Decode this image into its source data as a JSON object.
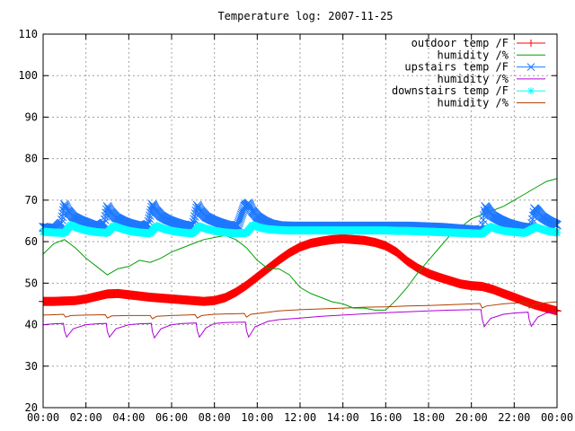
{
  "chart_data": {
    "type": "line",
    "title": "Temperature log: 2007-11-25",
    "xlabel": "",
    "ylabel": "",
    "xlim": [
      0,
      24
    ],
    "ylim": [
      20,
      110
    ],
    "y_ticks": [
      20,
      30,
      40,
      50,
      60,
      70,
      80,
      90,
      100,
      110
    ],
    "x_ticks": [
      {
        "h": 0,
        "label": "00:00"
      },
      {
        "h": 2,
        "label": "02:00"
      },
      {
        "h": 4,
        "label": "04:00"
      },
      {
        "h": 6,
        "label": "06:00"
      },
      {
        "h": 8,
        "label": "08:00"
      },
      {
        "h": 10,
        "label": "10:00"
      },
      {
        "h": 12,
        "label": "12:00"
      },
      {
        "h": 14,
        "label": "14:00"
      },
      {
        "h": 16,
        "label": "16:00"
      },
      {
        "h": 18,
        "label": "18:00"
      },
      {
        "h": 20,
        "label": "20:00"
      },
      {
        "h": 22,
        "label": "22:00"
      },
      {
        "h": 24,
        "label": "00:00"
      }
    ],
    "grid": true,
    "legend_position": "top-right",
    "series": [
      {
        "name": "outdoor temp /F",
        "color": "#ff0000",
        "marker": "plus",
        "line_width": 1,
        "marker_size": 5,
        "x": [
          0,
          0.5,
          1,
          1.5,
          2,
          2.5,
          3,
          3.5,
          4,
          4.5,
          5,
          5.5,
          6,
          6.5,
          7,
          7.5,
          8,
          8.5,
          9,
          9.5,
          10,
          10.5,
          11,
          11.5,
          12,
          12.5,
          13,
          13.5,
          14,
          14.5,
          15,
          15.5,
          16,
          16.5,
          17,
          17.5,
          18,
          18.5,
          19,
          19.5,
          20,
          20.5,
          21,
          21.5,
          22,
          22.5,
          23,
          23.5,
          24
        ],
        "y": [
          45.6,
          45.6,
          45.7,
          45.8,
          46.2,
          46.8,
          47.4,
          47.5,
          47.2,
          46.9,
          46.6,
          46.4,
          46.2,
          46.0,
          45.8,
          45.6,
          45.8,
          46.5,
          47.8,
          49.5,
          51.5,
          53.5,
          55.5,
          57.3,
          58.7,
          59.6,
          60.1,
          60.5,
          60.7,
          60.5,
          60.3,
          59.8,
          59.0,
          57.5,
          55.3,
          53.6,
          52.3,
          51.4,
          50.6,
          49.8,
          49.4,
          49.2,
          48.5,
          47.5,
          46.6,
          45.6,
          44.7,
          44.0,
          43.3
        ]
      },
      {
        "name": "humidity /%",
        "color": "#00a000",
        "marker": "none",
        "line_width": 1,
        "x": [
          0,
          0.5,
          1,
          1.5,
          2,
          2.5,
          3,
          3.5,
          4,
          4.5,
          5,
          5.5,
          6,
          6.5,
          7,
          7.5,
          8,
          8.5,
          9,
          9.5,
          10,
          10.5,
          11,
          11.5,
          12,
          12.5,
          13,
          13.5,
          14,
          14.5,
          15,
          15.5,
          16,
          16.5,
          17,
          17.5,
          18,
          18.5,
          19,
          19.5,
          20,
          20.5,
          21,
          21.5,
          22,
          22.5,
          23,
          23.5,
          24
        ],
        "y": [
          57.0,
          59.5,
          60.5,
          58.5,
          56.0,
          54.0,
          52.0,
          53.5,
          54.0,
          55.5,
          55.0,
          56.0,
          57.5,
          58.5,
          59.5,
          60.5,
          61.0,
          61.5,
          60.5,
          58.5,
          55.5,
          53.5,
          53.5,
          52.0,
          49.0,
          47.5,
          46.5,
          45.5,
          45.0,
          44.0,
          44.0,
          43.5,
          43.5,
          46.0,
          49.0,
          52.5,
          55.5,
          58.5,
          61.5,
          63.5,
          65.5,
          66.5,
          67.5,
          68.5,
          70.0,
          71.5,
          73.0,
          74.5,
          75.2
        ]
      },
      {
        "name": "upstairs temp /F",
        "color": "#1e78ff",
        "marker": "x",
        "line_width": 1,
        "marker_size": 4.5,
        "x": [
          0,
          0.3,
          0.6,
          0.85,
          1.0,
          1.15,
          1.4,
          1.7,
          2.0,
          2.3,
          2.6,
          2.85,
          3.0,
          3.15,
          3.4,
          3.7,
          4.0,
          4.3,
          4.6,
          4.9,
          5.1,
          5.25,
          5.5,
          5.8,
          6.1,
          6.4,
          6.7,
          7.0,
          7.2,
          7.35,
          7.6,
          7.9,
          8.2,
          8.5,
          8.8,
          9.1,
          9.4,
          9.6,
          9.75,
          10.0,
          10.3,
          10.6,
          11,
          11.5,
          12,
          12.5,
          13,
          13.5,
          14,
          14.5,
          15,
          15.5,
          16,
          16.5,
          17,
          17.5,
          18,
          18.5,
          19,
          19.5,
          20,
          20.3,
          20.5,
          20.65,
          20.8,
          21.0,
          21.3,
          21.6,
          21.9,
          22.2,
          22.5,
          22.8,
          22.95,
          23.1,
          23.3,
          23.6,
          24
        ],
        "y": [
          63.5,
          63.3,
          63.2,
          64.5,
          69.0,
          67.5,
          66.0,
          65.2,
          64.6,
          64.0,
          63.6,
          64.5,
          68.5,
          67.2,
          65.8,
          65.0,
          64.4,
          64.0,
          63.6,
          64.2,
          69.0,
          67.6,
          66.2,
          65.3,
          64.7,
          64.2,
          63.8,
          64.0,
          68.8,
          67.4,
          66.0,
          65.2,
          64.6,
          64.1,
          63.7,
          64.0,
          68.5,
          69.3,
          67.5,
          66.0,
          65.0,
          64.3,
          63.9,
          63.8,
          63.8,
          63.8,
          63.8,
          63.8,
          63.8,
          63.8,
          63.8,
          63.8,
          63.8,
          63.8,
          63.8,
          63.7,
          63.6,
          63.5,
          63.3,
          63.1,
          62.9,
          62.7,
          63.0,
          68.5,
          67.4,
          66.2,
          65.3,
          64.6,
          64.1,
          63.7,
          63.4,
          63.5,
          68.0,
          67.2,
          66.0,
          65.0,
          64.0
        ]
      },
      {
        "name": "humidity /%",
        "color": "#b000d8",
        "marker": "none",
        "line_width": 1,
        "x": [
          0,
          0.5,
          0.95,
          1.0,
          1.1,
          1.4,
          2.0,
          2.5,
          2.95,
          3.0,
          3.1,
          3.4,
          4.0,
          4.5,
          5.05,
          5.1,
          5.2,
          5.5,
          6.0,
          6.5,
          7.15,
          7.2,
          7.3,
          7.6,
          8.0,
          8.5,
          9.45,
          9.5,
          9.6,
          9.9,
          10.5,
          11,
          12,
          13,
          14,
          15,
          16,
          17,
          18,
          19,
          20,
          20.45,
          20.5,
          20.6,
          20.9,
          21.5,
          22,
          22.65,
          22.7,
          22.8,
          23.1,
          23.5,
          24
        ],
        "y": [
          40.0,
          40.2,
          40.3,
          38.5,
          37.0,
          39.0,
          40.0,
          40.2,
          40.3,
          38.3,
          37.0,
          39.0,
          40.0,
          40.2,
          40.3,
          38.3,
          36.8,
          39.0,
          40.0,
          40.3,
          40.4,
          38.5,
          37.0,
          39.2,
          40.3,
          40.5,
          40.6,
          38.5,
          37.0,
          39.5,
          40.8,
          41.2,
          41.6,
          42.0,
          42.3,
          42.6,
          42.9,
          43.1,
          43.3,
          43.5,
          43.6,
          43.6,
          41.5,
          39.5,
          41.5,
          42.5,
          42.8,
          43.0,
          41.2,
          39.6,
          41.8,
          42.8,
          43.2
        ]
      },
      {
        "name": "downstairs temp /F",
        "color": "#00ffff",
        "marker": "star",
        "line_width": 1,
        "marker_size": 4.5,
        "x": [
          0,
          0.5,
          1.0,
          1.3,
          1.6,
          2.0,
          2.5,
          3.0,
          3.3,
          3.6,
          4.0,
          4.5,
          5.0,
          5.3,
          5.6,
          6.0,
          6.5,
          7.0,
          7.3,
          7.6,
          8.0,
          8.5,
          9.0,
          9.5,
          9.8,
          10.1,
          10.5,
          11,
          11.5,
          12,
          12.5,
          13,
          13.5,
          14,
          14.5,
          15,
          15.5,
          16,
          16.5,
          17,
          17.5,
          18,
          18.5,
          19,
          19.5,
          20,
          20.5,
          20.9,
          21.2,
          21.5,
          22,
          22.5,
          23.0,
          23.3,
          23.6,
          24
        ],
        "y": [
          62.4,
          62.2,
          62.1,
          64.0,
          63.3,
          62.7,
          62.3,
          62.1,
          63.8,
          63.2,
          62.6,
          62.2,
          62.0,
          63.8,
          63.1,
          62.6,
          62.2,
          62.0,
          63.7,
          63.1,
          62.6,
          62.2,
          62.0,
          62.1,
          64.0,
          63.4,
          63.0,
          62.8,
          62.7,
          62.7,
          62.7,
          62.7,
          62.7,
          62.7,
          62.7,
          62.7,
          62.7,
          62.7,
          62.6,
          62.6,
          62.5,
          62.4,
          62.3,
          62.2,
          62.1,
          62.0,
          61.9,
          63.6,
          63.0,
          62.6,
          62.3,
          62.1,
          63.5,
          63.0,
          62.5,
          62.2
        ]
      },
      {
        "name": "humidity /%",
        "color": "#b04000",
        "marker": "none",
        "line_width": 1,
        "x": [
          0,
          0.5,
          0.95,
          1.05,
          1.3,
          2.0,
          2.9,
          3.0,
          3.2,
          4.0,
          5.0,
          5.1,
          5.3,
          6.0,
          7.1,
          7.2,
          7.4,
          8.0,
          9.4,
          9.5,
          9.7,
          10.5,
          11,
          12,
          13,
          14,
          15,
          16,
          17,
          18,
          19,
          20,
          20.4,
          20.5,
          20.7,
          21.5,
          22,
          22.6,
          22.7,
          22.9,
          23.5,
          24
        ],
        "y": [
          42.3,
          42.4,
          42.5,
          41.8,
          42.2,
          42.3,
          42.4,
          41.6,
          42.1,
          42.2,
          42.2,
          41.4,
          42.0,
          42.2,
          42.4,
          41.6,
          42.2,
          42.5,
          42.7,
          41.8,
          42.5,
          43.0,
          43.3,
          43.6,
          43.8,
          44.0,
          44.2,
          44.3,
          44.5,
          44.6,
          44.8,
          45.0,
          45.1,
          44.0,
          44.5,
          45.0,
          45.2,
          45.3,
          44.0,
          44.8,
          45.3,
          45.5
        ]
      }
    ]
  }
}
